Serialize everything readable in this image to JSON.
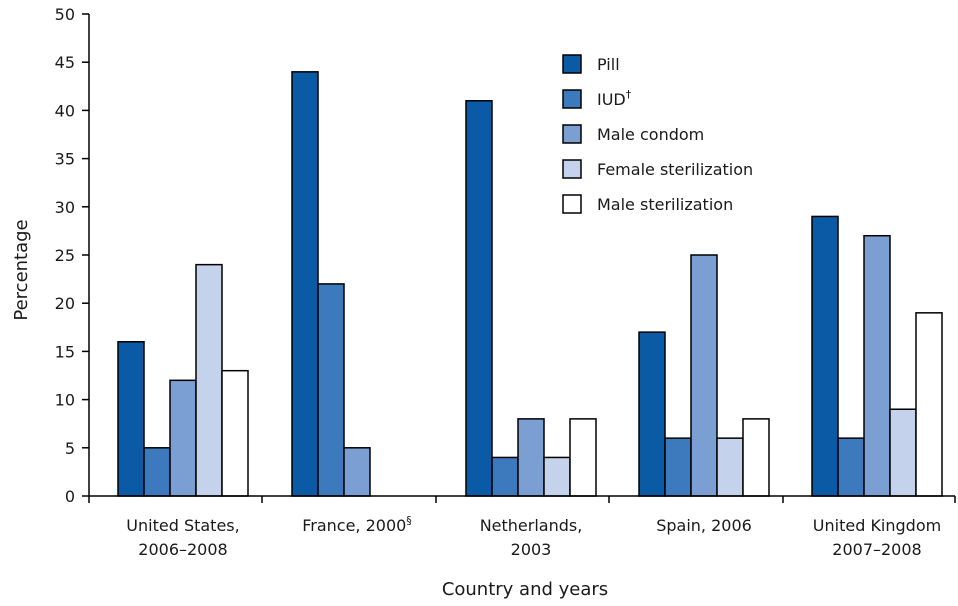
{
  "chart_data": {
    "type": "bar",
    "title": "",
    "xlabel": "Country and years",
    "ylabel": "Percentage",
    "ylim": [
      0,
      50
    ],
    "yticks": [
      0,
      5,
      10,
      15,
      20,
      25,
      30,
      35,
      40,
      45,
      50
    ],
    "grid": false,
    "legend_position": "top-right",
    "categories": [
      {
        "lines": [
          "United States,",
          "2006–2008"
        ],
        "sup": ""
      },
      {
        "lines": [
          "France, 2000"
        ],
        "sup": "§"
      },
      {
        "lines": [
          "Netherlands,",
          "2003"
        ],
        "sup": ""
      },
      {
        "lines": [
          "Spain, 2006"
        ],
        "sup": ""
      },
      {
        "lines": [
          "United Kingdom",
          "2007–2008"
        ],
        "sup": ""
      }
    ],
    "series": [
      {
        "name": "Pill",
        "sup": "",
        "color": "#0b5aa6",
        "values": [
          16,
          44,
          41,
          17,
          29
        ]
      },
      {
        "name": "IUD",
        "sup": "†",
        "color": "#3d79bd",
        "values": [
          5,
          22,
          4,
          6,
          6
        ]
      },
      {
        "name": "Male condom",
        "sup": "",
        "color": "#7b9fd3",
        "values": [
          12,
          5,
          8,
          25,
          27
        ]
      },
      {
        "name": "Female sterilization",
        "sup": "",
        "color": "#c5d2ec",
        "values": [
          24,
          null,
          4,
          6,
          9
        ]
      },
      {
        "name": "Male sterilization",
        "sup": "",
        "color": "#ffffff",
        "values": [
          13,
          null,
          8,
          8,
          19
        ]
      }
    ]
  }
}
